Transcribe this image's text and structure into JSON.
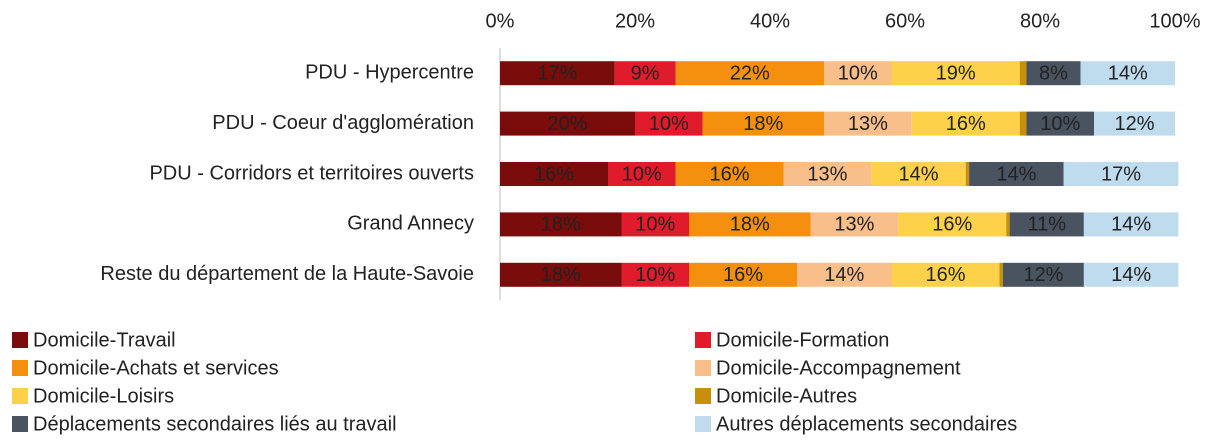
{
  "chart_data": {
    "type": "stacked-bar-horizontal",
    "categories": [
      "PDU - Hypercentre",
      "PDU - Coeur d'agglomération",
      "PDU - Corridors et territoires ouverts",
      "Grand Annecy",
      "Reste du département de la Haute-Savoie"
    ],
    "xlim": [
      0,
      100
    ],
    "xticks": [
      {
        "value": 0,
        "label": "0%"
      },
      {
        "value": 20,
        "label": "20%"
      },
      {
        "value": 40,
        "label": "40%"
      },
      {
        "value": 60,
        "label": "60%"
      },
      {
        "value": 80,
        "label": "80%"
      },
      {
        "value": 100,
        "label": "100%"
      }
    ],
    "legend": "bottom",
    "series": [
      {
        "name": "Domicile-Travail",
        "color": "#7b0c0c",
        "label_color": "#ffffff",
        "values": [
          17,
          20,
          16,
          18,
          18
        ],
        "value_labels": [
          "17%",
          "20%",
          "16%",
          "18%",
          "18%"
        ]
      },
      {
        "name": "Domicile-Formation",
        "color": "#e01b2b",
        "label_color": "#ffffff",
        "values": [
          9,
          10,
          10,
          10,
          10
        ],
        "value_labels": [
          "9%",
          "10%",
          "10%",
          "10%",
          "10%"
        ]
      },
      {
        "name": "Domicile-Achats et services",
        "color": "#f4900e",
        "label_color": "#ffffff",
        "values": [
          22,
          18,
          16,
          18,
          16
        ],
        "value_labels": [
          "22%",
          "18%",
          "16%",
          "18%",
          "16%"
        ]
      },
      {
        "name": "Domicile-Accompagnement",
        "color": "#f8bf8b",
        "label_color": "#222222",
        "values": [
          10,
          13,
          13,
          13,
          14
        ],
        "value_labels": [
          "10%",
          "13%",
          "13%",
          "13%",
          "14%"
        ]
      },
      {
        "name": "Domicile-Loisirs",
        "color": "#fed14b",
        "label_color": "#222222",
        "values": [
          19,
          16,
          14,
          16,
          16
        ],
        "value_labels": [
          "19%",
          "16%",
          "14%",
          "16%",
          "16%"
        ]
      },
      {
        "name": "Domicile-Autres",
        "color": "#c8900a",
        "label_color": "#222222",
        "values": [
          1,
          1,
          0.5,
          0.5,
          0.5
        ],
        "value_labels": [
          null,
          null,
          null,
          null,
          null
        ]
      },
      {
        "name": "Déplacements secondaires liés au travail",
        "color": "#4a5360",
        "label_color": "#ffffff",
        "values": [
          8,
          10,
          14,
          11,
          12
        ],
        "value_labels": [
          "8%",
          "10%",
          "14%",
          "11%",
          "12%"
        ]
      },
      {
        "name": "Autres déplacements secondaires",
        "color": "#bfdcef",
        "label_color": "#222222",
        "values": [
          14,
          12,
          17,
          14,
          14
        ],
        "value_labels": [
          "14%",
          "12%",
          "17%",
          "14%",
          "14%"
        ]
      }
    ]
  }
}
